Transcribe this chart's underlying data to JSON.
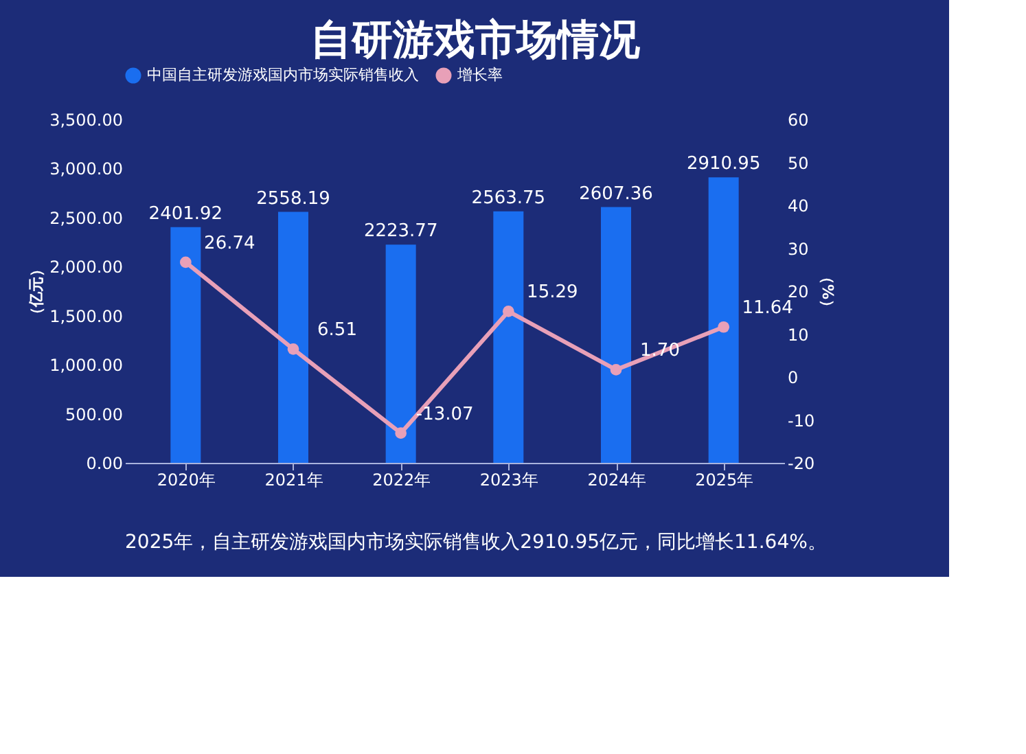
{
  "chart_data": {
    "type": "bar",
    "title": "自研游戏市场情况",
    "categories": [
      "2020年",
      "2021年",
      "2022年",
      "2023年",
      "2024年",
      "2025年"
    ],
    "series": [
      {
        "name": "中国自主研发游戏国内市场实际销售收入",
        "color": "#1a6ef0",
        "values": [
          2401.92,
          2558.19,
          2223.77,
          2563.75,
          2607.36,
          2910.95
        ],
        "value_labels": [
          "2401.92",
          "2558.19",
          "2223.77",
          "2563.75",
          "2607.36",
          "2910.95"
        ]
      },
      {
        "name": "增长率",
        "type": "line",
        "axis": "y2",
        "color": "#e8a0b8",
        "marker": "circle",
        "values": [
          26.74,
          6.51,
          -13.07,
          15.29,
          1.7,
          11.64
        ],
        "value_labels": [
          "26.74",
          "6.51",
          "-13.07",
          "15.29",
          "1.70",
          "11.64"
        ]
      }
    ],
    "ylabel": "（亿元）",
    "y2label": "（%）",
    "ylim": [
      0,
      3500
    ],
    "yticks": [
      {
        "value": 0,
        "label": "0.00"
      },
      {
        "value": 500,
        "label": "500.00"
      },
      {
        "value": 1000,
        "label": "1,000.00"
      },
      {
        "value": 1500,
        "label": "1,500.00"
      },
      {
        "value": 2000,
        "label": "2,000.00"
      },
      {
        "value": 2500,
        "label": "2,500.00"
      },
      {
        "value": 3000,
        "label": "3,000.00"
      },
      {
        "value": 3500,
        "label": "3,500.00"
      }
    ],
    "y2lim": [
      -20,
      60
    ],
    "y2ticks": [
      -20,
      -10,
      0,
      10,
      20,
      30,
      40,
      50,
      60
    ],
    "legend": "top",
    "grid": false,
    "annotations": [
      "2025年，自主研发游戏国内市场实际销售收入2910.95亿元，同比增长11.64%。"
    ]
  }
}
